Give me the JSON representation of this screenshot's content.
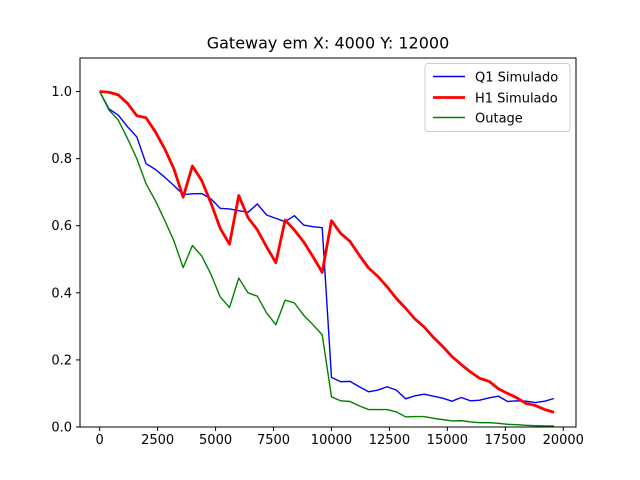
{
  "chart_data": {
    "type": "line",
    "title": "Gateway em X: 4000 Y: 12000",
    "xlabel": "",
    "ylabel": "",
    "xlim": [
      -850,
      20550
    ],
    "ylim": [
      0,
      1.1
    ],
    "xticks": [
      0,
      2500,
      5000,
      7500,
      10000,
      12500,
      15000,
      17500,
      20000
    ],
    "xtick_labels": [
      "0",
      "2500",
      "5000",
      "7500",
      "10000",
      "12500",
      "15000",
      "17500",
      "20000"
    ],
    "yticks": [
      0.0,
      0.2,
      0.4,
      0.6,
      0.8,
      1.0
    ],
    "ytick_labels": [
      "0.0",
      "0.2",
      "0.4",
      "0.6",
      "0.8",
      "1.0"
    ],
    "grid": false,
    "legend_position": "top-right",
    "series": [
      {
        "name": "Q1 Simulado",
        "color": "#0000ff",
        "linewidth": 1,
        "points": [
          [
            0,
            1.0
          ],
          [
            400,
            0.948
          ],
          [
            800,
            0.93
          ],
          [
            1200,
            0.895
          ],
          [
            1600,
            0.865
          ],
          [
            2000,
            0.785
          ],
          [
            2400,
            0.768
          ],
          [
            2800,
            0.745
          ],
          [
            3200,
            0.72
          ],
          [
            3600,
            0.693
          ],
          [
            4000,
            0.695
          ],
          [
            4400,
            0.696
          ],
          [
            4800,
            0.68
          ],
          [
            5200,
            0.652
          ],
          [
            5600,
            0.65
          ],
          [
            6000,
            0.645
          ],
          [
            6400,
            0.64
          ],
          [
            6800,
            0.665
          ],
          [
            7200,
            0.632
          ],
          [
            7600,
            0.622
          ],
          [
            8000,
            0.612
          ],
          [
            8400,
            0.63
          ],
          [
            8800,
            0.602
          ],
          [
            9200,
            0.597
          ],
          [
            9600,
            0.594
          ],
          [
            10000,
            0.148
          ],
          [
            10400,
            0.135
          ],
          [
            10800,
            0.136
          ],
          [
            11200,
            0.12
          ],
          [
            11600,
            0.105
          ],
          [
            12000,
            0.11
          ],
          [
            12400,
            0.12
          ],
          [
            12800,
            0.11
          ],
          [
            13200,
            0.084
          ],
          [
            13600,
            0.093
          ],
          [
            14000,
            0.098
          ],
          [
            14400,
            0.092
          ],
          [
            14800,
            0.086
          ],
          [
            15200,
            0.077
          ],
          [
            15600,
            0.088
          ],
          [
            16000,
            0.078
          ],
          [
            16400,
            0.08
          ],
          [
            16800,
            0.087
          ],
          [
            17200,
            0.092
          ],
          [
            17600,
            0.076
          ],
          [
            18000,
            0.078
          ],
          [
            18400,
            0.077
          ],
          [
            18800,
            0.073
          ],
          [
            19200,
            0.077
          ],
          [
            19600,
            0.085
          ]
        ]
      },
      {
        "name": "H1 Simulado",
        "color": "#ff0000",
        "linewidth": 2,
        "points": [
          [
            0,
            1.0
          ],
          [
            400,
            0.998
          ],
          [
            800,
            0.99
          ],
          [
            1200,
            0.965
          ],
          [
            1600,
            0.928
          ],
          [
            2000,
            0.922
          ],
          [
            2400,
            0.88
          ],
          [
            2800,
            0.83
          ],
          [
            3200,
            0.77
          ],
          [
            3600,
            0.685
          ],
          [
            4000,
            0.778
          ],
          [
            4400,
            0.735
          ],
          [
            4800,
            0.668
          ],
          [
            5200,
            0.592
          ],
          [
            5600,
            0.545
          ],
          [
            6000,
            0.69
          ],
          [
            6400,
            0.624
          ],
          [
            6800,
            0.588
          ],
          [
            7200,
            0.537
          ],
          [
            7600,
            0.49
          ],
          [
            8000,
            0.617
          ],
          [
            8400,
            0.587
          ],
          [
            8800,
            0.552
          ],
          [
            9200,
            0.508
          ],
          [
            9600,
            0.461
          ],
          [
            10000,
            0.615
          ],
          [
            10400,
            0.577
          ],
          [
            10800,
            0.553
          ],
          [
            11200,
            0.512
          ],
          [
            11600,
            0.474
          ],
          [
            12000,
            0.449
          ],
          [
            12400,
            0.418
          ],
          [
            12800,
            0.383
          ],
          [
            13200,
            0.354
          ],
          [
            13600,
            0.322
          ],
          [
            14000,
            0.298
          ],
          [
            14400,
            0.267
          ],
          [
            14800,
            0.24
          ],
          [
            15200,
            0.21
          ],
          [
            15600,
            0.186
          ],
          [
            16000,
            0.164
          ],
          [
            16400,
            0.145
          ],
          [
            16800,
            0.136
          ],
          [
            17200,
            0.114
          ],
          [
            17600,
            0.1
          ],
          [
            18000,
            0.087
          ],
          [
            18400,
            0.07
          ],
          [
            18800,
            0.064
          ],
          [
            19200,
            0.052
          ],
          [
            19600,
            0.044
          ]
        ]
      },
      {
        "name": "Outage",
        "color": "#008000",
        "linewidth": 1,
        "points": [
          [
            0,
            1.0
          ],
          [
            400,
            0.945
          ],
          [
            800,
            0.915
          ],
          [
            1200,
            0.86
          ],
          [
            1600,
            0.8
          ],
          [
            2000,
            0.725
          ],
          [
            2400,
            0.675
          ],
          [
            2800,
            0.617
          ],
          [
            3200,
            0.555
          ],
          [
            3600,
            0.475
          ],
          [
            4000,
            0.541
          ],
          [
            4400,
            0.51
          ],
          [
            4800,
            0.455
          ],
          [
            5200,
            0.388
          ],
          [
            5600,
            0.356
          ],
          [
            6000,
            0.444
          ],
          [
            6400,
            0.4
          ],
          [
            6800,
            0.39
          ],
          [
            7200,
            0.34
          ],
          [
            7600,
            0.305
          ],
          [
            8000,
            0.378
          ],
          [
            8400,
            0.37
          ],
          [
            8800,
            0.333
          ],
          [
            9200,
            0.305
          ],
          [
            9600,
            0.275
          ],
          [
            10000,
            0.09
          ],
          [
            10400,
            0.078
          ],
          [
            10800,
            0.076
          ],
          [
            11200,
            0.063
          ],
          [
            11600,
            0.052
          ],
          [
            12000,
            0.052
          ],
          [
            12400,
            0.052
          ],
          [
            12800,
            0.045
          ],
          [
            13200,
            0.03
          ],
          [
            13600,
            0.031
          ],
          [
            14000,
            0.031
          ],
          [
            14400,
            0.026
          ],
          [
            14800,
            0.022
          ],
          [
            15200,
            0.018
          ],
          [
            15600,
            0.019
          ],
          [
            16000,
            0.015
          ],
          [
            16400,
            0.013
          ],
          [
            16800,
            0.013
          ],
          [
            17200,
            0.011
          ],
          [
            17600,
            0.008
          ],
          [
            18000,
            0.007
          ],
          [
            18400,
            0.005
          ],
          [
            18800,
            0.004
          ],
          [
            19200,
            0.003
          ],
          [
            19600,
            0.003
          ]
        ]
      }
    ]
  }
}
